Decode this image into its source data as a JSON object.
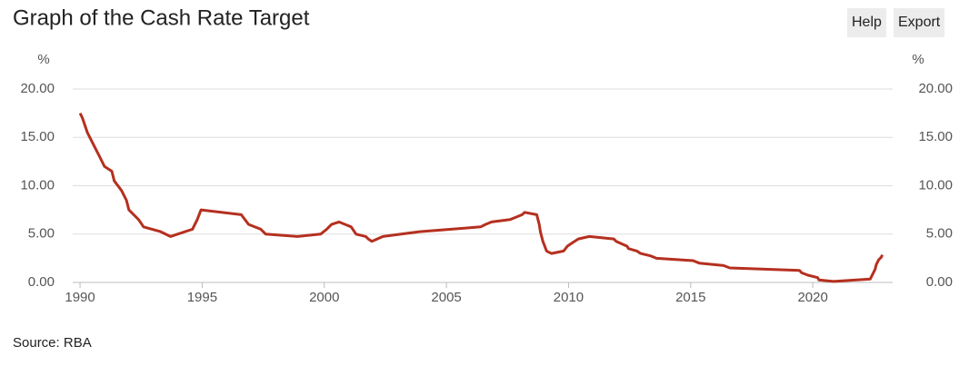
{
  "chart_data": {
    "type": "line",
    "title": "Graph of the Cash Rate Target",
    "source": "Source: RBA",
    "buttons": [
      "Help",
      "Export"
    ],
    "ylabel": "%",
    "y2label": "%",
    "x": [
      1990.0,
      1990.1,
      1990.3,
      1990.6,
      1990.8,
      1991.0,
      1991.3,
      1991.4,
      1991.7,
      1991.9,
      1992.0,
      1992.4,
      1992.6,
      1993.3,
      1993.7,
      1994.6,
      1994.8,
      1994.95,
      1996.6,
      1996.9,
      1997.4,
      1997.6,
      1998.9,
      1999.85,
      2000.1,
      2000.3,
      2000.6,
      2001.1,
      2001.3,
      2001.7,
      2001.8,
      2001.95,
      2002.4,
      2003.9,
      2005.2,
      2006.4,
      2006.6,
      2006.85,
      2007.6,
      2007.85,
      2008.1,
      2008.2,
      2008.7,
      2008.8,
      2008.85,
      2008.95,
      2009.1,
      2009.3,
      2009.8,
      2009.95,
      2010.1,
      2010.4,
      2010.85,
      2011.85,
      2011.95,
      2012.4,
      2012.45,
      2012.8,
      2012.95,
      2013.35,
      2013.6,
      2015.1,
      2015.35,
      2016.35,
      2016.6,
      2019.45,
      2019.55,
      2019.8,
      2020.2,
      2020.25,
      2020.85,
      2022.35,
      2022.45,
      2022.55,
      2022.6,
      2022.7,
      2022.8,
      2022.85
    ],
    "series": [
      {
        "name": "Cash Rate Target",
        "color": "#b5301f",
        "values": [
          17.5,
          17.0,
          15.5,
          14.0,
          13.0,
          12.0,
          11.5,
          10.5,
          9.5,
          8.5,
          7.5,
          6.5,
          5.75,
          5.25,
          4.75,
          5.5,
          6.5,
          7.5,
          7.0,
          6.0,
          5.5,
          5.0,
          4.75,
          5.0,
          5.5,
          6.0,
          6.25,
          5.75,
          5.0,
          4.75,
          4.5,
          4.25,
          4.75,
          5.25,
          5.5,
          5.75,
          6.0,
          6.25,
          6.5,
          6.75,
          7.0,
          7.25,
          7.0,
          6.0,
          5.25,
          4.25,
          3.25,
          3.0,
          3.25,
          3.75,
          4.0,
          4.5,
          4.75,
          4.5,
          4.25,
          3.75,
          3.5,
          3.25,
          3.0,
          2.75,
          2.5,
          2.25,
          2.0,
          1.75,
          1.5,
          1.25,
          1.0,
          0.75,
          0.5,
          0.25,
          0.1,
          0.35,
          0.85,
          1.35,
          1.85,
          2.35,
          2.6,
          2.85
        ]
      }
    ],
    "xlim": [
      1989.7,
      2023.27
    ],
    "xticks": [
      1990,
      1995,
      2000,
      2005,
      2010,
      2015,
      2020
    ],
    "ylim": [
      0,
      20
    ],
    "yticks": [
      {
        "value": 0,
        "label": "0.00"
      },
      {
        "value": 5,
        "label": "5.00"
      },
      {
        "value": 10,
        "label": "10.00"
      },
      {
        "value": 15,
        "label": "15.00"
      },
      {
        "value": 20,
        "label": "20.00"
      }
    ],
    "y2lim": [
      0,
      20
    ],
    "y2ticks": [
      {
        "value": 0,
        "label": "0.00"
      },
      {
        "value": 5,
        "label": "5.00"
      },
      {
        "value": 10,
        "label": "10.00"
      },
      {
        "value": 15,
        "label": "15.00"
      },
      {
        "value": 20,
        "label": "20.00"
      }
    ],
    "grid": true
  }
}
